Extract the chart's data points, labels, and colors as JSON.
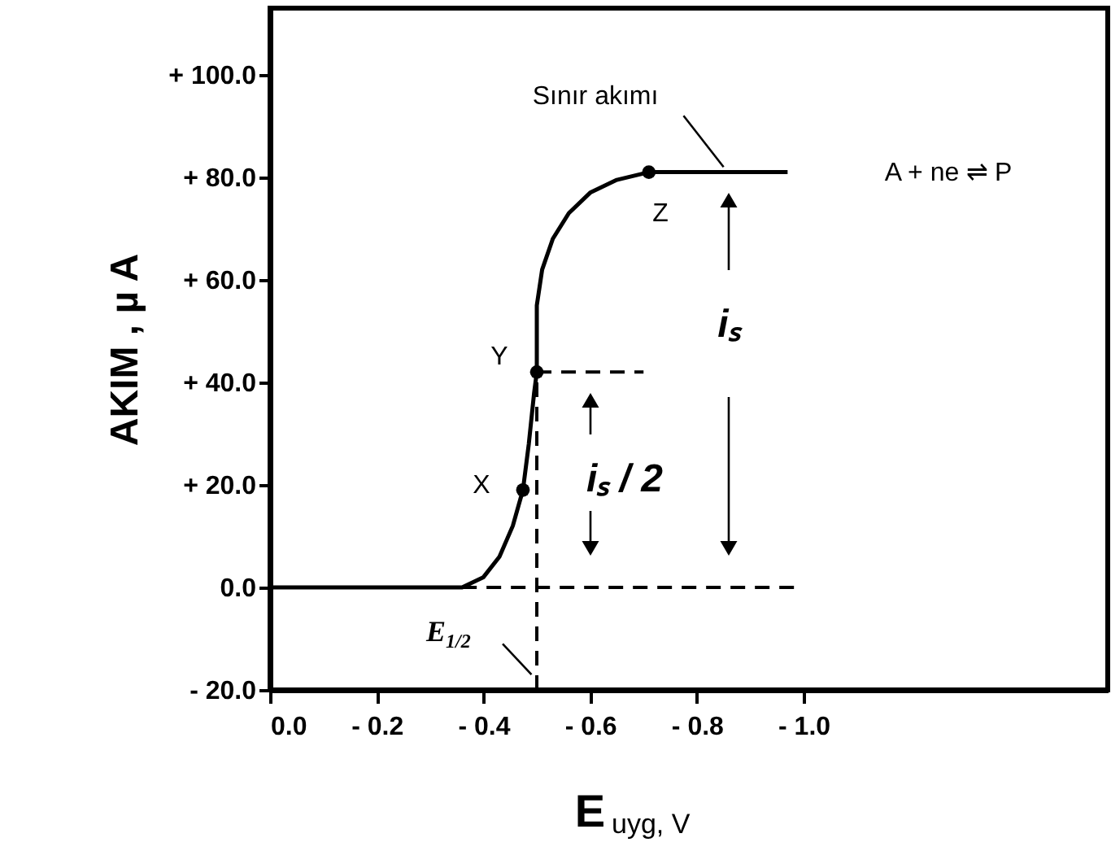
{
  "chart_data": {
    "type": "line",
    "xlabel": "E$_{uyg, V}$",
    "ylabel": "AKIM , µ A",
    "xlim": [
      0,
      -1.57
    ],
    "ylim": [
      -20,
      113
    ],
    "xticks": [
      {
        "value": 0,
        "label": "0.0"
      },
      {
        "value": -0.2,
        "label": "- 0.2"
      },
      {
        "value": -0.4,
        "label": "- 0.4"
      },
      {
        "value": -0.6,
        "label": "- 0.6"
      },
      {
        "value": -0.8,
        "label": "- 0.8"
      },
      {
        "value": -1.0,
        "label": "- 1.0"
      }
    ],
    "yticks": [
      {
        "value": -20,
        "label": "- 20.0"
      },
      {
        "value": 0,
        "label": "0.0"
      },
      {
        "value": 20,
        "label": "+ 20.0"
      },
      {
        "value": 40,
        "label": "+ 40.0"
      },
      {
        "value": 60,
        "label": "+ 60.0"
      },
      {
        "value": 80,
        "label": "+ 80.0"
      },
      {
        "value": 100,
        "label": "+ 100.0"
      }
    ],
    "grid": false,
    "series": [
      {
        "type": "line",
        "line_style": "solid",
        "color": "#000000",
        "x": [
          0,
          -0.36,
          -0.4,
          -0.43,
          -0.455,
          -0.474,
          -0.485,
          -0.495,
          -0.5,
          -0.5,
          -0.51,
          -0.53,
          -0.56,
          -0.6,
          -0.65,
          -0.71,
          -0.97
        ],
        "values": [
          0,
          0,
          2,
          6,
          12,
          19,
          28,
          38,
          42,
          55,
          62,
          68,
          73,
          77,
          79.5,
          81,
          81
        ]
      },
      {
        "type": "scatter",
        "marker": "circle",
        "color": "#000000",
        "x": [
          -0.474,
          -0.5,
          -0.71
        ],
        "values": [
          19,
          42,
          81
        ]
      },
      {
        "type": "line",
        "line_style": "dashed",
        "color": "#000000",
        "x": [
          -0.36,
          -0.99
        ],
        "values": [
          0,
          0
        ]
      },
      {
        "type": "line",
        "line_style": "dashed",
        "color": "#000000",
        "x": [
          -0.5,
          -0.7
        ],
        "values": [
          42,
          42
        ]
      },
      {
        "type": "line",
        "line_style": "dashed",
        "color": "#000000",
        "x": [
          -0.5,
          -0.5
        ],
        "values": [
          -20,
          42
        ]
      },
      {
        "type": "line",
        "line_style": "solid",
        "color": "#000000",
        "x": [
          -0.775,
          -0.85
        ],
        "values": [
          92,
          82
        ]
      },
      {
        "type": "line",
        "line_style": "solid",
        "color": "#000000",
        "x": [
          -0.436,
          -0.49
        ],
        "values": [
          -11,
          -17
        ]
      }
    ],
    "annotations": [
      "Sınır akımı",
      "A + ne ⇌ P",
      "X",
      "Y",
      "Z",
      "iₛ",
      "iₛ / 2",
      "E$_{1/2}$"
    ]
  }
}
